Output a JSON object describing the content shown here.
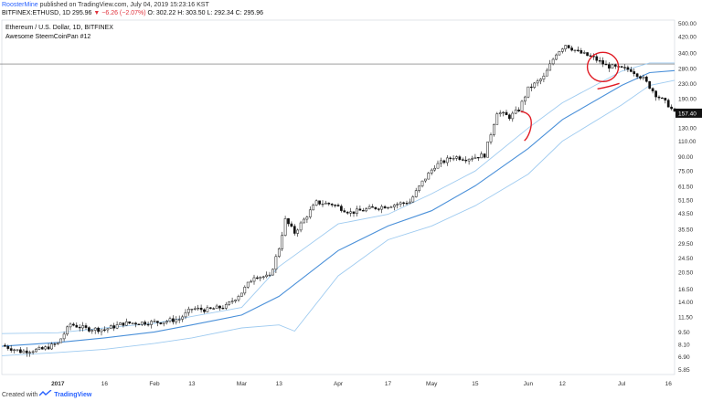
{
  "header": {
    "author": "RoosterMine",
    "published": "published on TradingView.com, July 04, 2019 15:23:16 KST"
  },
  "ohlc_line": {
    "symbol": "BITFINEX:ETHUSD, 1D",
    "last": "295.96",
    "change": "▼ −6.26 (−2.07%)",
    "o": "O: 302.22",
    "h": "H: 303.50",
    "l": "L: 292.34",
    "c": "C: 295.96"
  },
  "legend": {
    "title": "Ethereum / U.S. Dollar, 1D, BITFINEX",
    "indicator": "Awesome SteemCoinPan #12"
  },
  "footer": {
    "created_with": "Created with",
    "brand": "TradingView"
  },
  "colors": {
    "candle_up": "#ffffff",
    "candle_down": "#111111",
    "ma_line": "#4a90d9",
    "band_line": "#9fcbf0",
    "annotation": "#e01b24",
    "price_tag_bg": "#111111"
  },
  "chart_data": {
    "type": "candlestick",
    "y_scale": "log",
    "ylim": [
      5.5,
      520
    ],
    "y_tick_labels": [
      "500.00",
      "420.00",
      "340.00",
      "280.00",
      "230.00",
      "190.00",
      "160.00",
      "130.00",
      "110.00",
      "90.00",
      "75.00",
      "61.50",
      "51.50",
      "43.50",
      "35.50",
      "29.50",
      "24.50",
      "20.50",
      "16.50",
      "14.00",
      "11.50",
      "9.50",
      "8.10",
      "6.90",
      "5.85"
    ],
    "x_tick_labels": [
      "2017",
      "16",
      "Feb",
      "13",
      "Mar",
      "13",
      "Apr",
      "17",
      "May",
      "15",
      "Jun",
      "12",
      "Jul",
      "16"
    ],
    "x_ticks": [
      "2017-01-01",
      "2017-01-16",
      "2017-02-01",
      "2017-02-13",
      "2017-03-01",
      "2017-03-13",
      "2017-04-01",
      "2017-04-17",
      "2017-05-01",
      "2017-05-15",
      "2017-06-01",
      "2017-06-12",
      "2017-07-01",
      "2017-07-16"
    ],
    "x_range": [
      "2016-12-14",
      "2017-07-18"
    ],
    "horizontal_line": 295.96,
    "last_price_label": "157.40",
    "last_price": 157.4,
    "price_path": [
      [
        "2016-12-14",
        8.0
      ],
      [
        "2016-12-20",
        7.4
      ],
      [
        "2016-12-27",
        7.6
      ],
      [
        "2017-01-01",
        8.2
      ],
      [
        "2017-01-05",
        10.5
      ],
      [
        "2017-01-10",
        9.9
      ],
      [
        "2017-01-16",
        9.8
      ],
      [
        "2017-01-22",
        10.6
      ],
      [
        "2017-01-28",
        10.7
      ],
      [
        "2017-02-03",
        10.8
      ],
      [
        "2017-02-09",
        11.2
      ],
      [
        "2017-02-13",
        12.8
      ],
      [
        "2017-02-18",
        12.6
      ],
      [
        "2017-02-24",
        13.2
      ],
      [
        "2017-03-01",
        15.8
      ],
      [
        "2017-03-05",
        19.5
      ],
      [
        "2017-03-10",
        19.2
      ],
      [
        "2017-03-13",
        28.0
      ],
      [
        "2017-03-15",
        40.0
      ],
      [
        "2017-03-18",
        34.0
      ],
      [
        "2017-03-25",
        50.0
      ],
      [
        "2017-03-30",
        49.0
      ],
      [
        "2017-04-05",
        44.0
      ],
      [
        "2017-04-12",
        46.5
      ],
      [
        "2017-04-17",
        48.0
      ],
      [
        "2017-04-24",
        50.5
      ],
      [
        "2017-04-28",
        65.0
      ],
      [
        "2017-05-02",
        80.0
      ],
      [
        "2017-05-08",
        90.0
      ],
      [
        "2017-05-12",
        88.0
      ],
      [
        "2017-05-18",
        92.0
      ],
      [
        "2017-05-22",
        160.0
      ],
      [
        "2017-05-26",
        150.0
      ],
      [
        "2017-05-29",
        165.0
      ],
      [
        "2017-06-01",
        215.0
      ],
      [
        "2017-06-06",
        250.0
      ],
      [
        "2017-06-10",
        340.0
      ],
      [
        "2017-06-13",
        380.0
      ],
      [
        "2017-06-17",
        345.0
      ],
      [
        "2017-06-22",
        320.0
      ],
      [
        "2017-06-26",
        290.0
      ],
      [
        "2017-06-30",
        280.0
      ],
      [
        "2017-07-04",
        275.0
      ],
      [
        "2017-07-08",
        245.0
      ],
      [
        "2017-07-12",
        200.0
      ],
      [
        "2017-07-16",
        175.0
      ],
      [
        "2017-07-18",
        157.4
      ]
    ],
    "ma_path": [
      [
        "2016-12-14",
        7.9
      ],
      [
        "2017-01-01",
        8.3
      ],
      [
        "2017-01-16",
        8.8
      ],
      [
        "2017-02-01",
        9.5
      ],
      [
        "2017-02-13",
        10.4
      ],
      [
        "2017-03-01",
        11.8
      ],
      [
        "2017-03-13",
        15.0
      ],
      [
        "2017-04-01",
        27.0
      ],
      [
        "2017-04-17",
        37.0
      ],
      [
        "2017-05-01",
        45.0
      ],
      [
        "2017-05-15",
        62.0
      ],
      [
        "2017-06-01",
        100.0
      ],
      [
        "2017-06-12",
        145.0
      ],
      [
        "2017-07-01",
        225.0
      ],
      [
        "2017-07-10",
        265.0
      ],
      [
        "2017-07-18",
        272.0
      ]
    ],
    "upper_band_path": [
      [
        "2016-12-14",
        9.3
      ],
      [
        "2017-01-01",
        9.4
      ],
      [
        "2017-01-16",
        10.0
      ],
      [
        "2017-02-01",
        10.6
      ],
      [
        "2017-02-13",
        11.6
      ],
      [
        "2017-03-01",
        13.0
      ],
      [
        "2017-03-13",
        22.0
      ],
      [
        "2017-04-01",
        38.0
      ],
      [
        "2017-04-17",
        43.0
      ],
      [
        "2017-05-01",
        56.0
      ],
      [
        "2017-05-15",
        75.0
      ],
      [
        "2017-06-01",
        130.0
      ],
      [
        "2017-06-12",
        180.0
      ],
      [
        "2017-07-01",
        270.0
      ],
      [
        "2017-07-10",
        300.0
      ],
      [
        "2017-07-18",
        300.0
      ]
    ],
    "lower_band_path": [
      [
        "2016-12-14",
        7.0
      ],
      [
        "2017-01-01",
        7.3
      ],
      [
        "2017-01-16",
        7.6
      ],
      [
        "2017-02-01",
        8.2
      ],
      [
        "2017-02-13",
        8.8
      ],
      [
        "2017-03-01",
        10.0
      ],
      [
        "2017-03-13",
        10.4
      ],
      [
        "2017-03-18",
        9.6
      ],
      [
        "2017-04-01",
        19.5
      ],
      [
        "2017-04-17",
        31.0
      ],
      [
        "2017-05-01",
        37.0
      ],
      [
        "2017-05-15",
        48.0
      ],
      [
        "2017-06-01",
        72.0
      ],
      [
        "2017-06-12",
        110.0
      ],
      [
        "2017-07-01",
        175.0
      ],
      [
        "2017-07-10",
        225.0
      ],
      [
        "2017-07-18",
        240.0
      ]
    ],
    "annotations": [
      {
        "type": "hook",
        "date": "2017-05-29",
        "price": 150
      },
      {
        "type": "ellipse",
        "date": "2017-06-25",
        "price": 285
      }
    ]
  }
}
